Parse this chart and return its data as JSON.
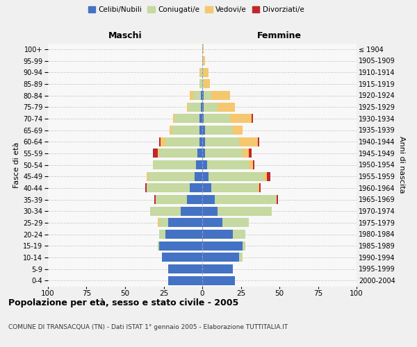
{
  "age_groups": [
    "0-4",
    "5-9",
    "10-14",
    "15-19",
    "20-24",
    "25-29",
    "30-34",
    "35-39",
    "40-44",
    "45-49",
    "50-54",
    "55-59",
    "60-64",
    "65-69",
    "70-74",
    "75-79",
    "80-84",
    "85-89",
    "90-94",
    "95-99",
    "100+"
  ],
  "birth_years": [
    "2000-2004",
    "1995-1999",
    "1990-1994",
    "1985-1989",
    "1980-1984",
    "1975-1979",
    "1970-1974",
    "1965-1969",
    "1960-1964",
    "1955-1959",
    "1950-1954",
    "1945-1949",
    "1940-1944",
    "1935-1939",
    "1930-1934",
    "1925-1929",
    "1920-1924",
    "1915-1919",
    "1910-1914",
    "1905-1909",
    "≤ 1904"
  ],
  "colors": {
    "celibe": "#4472C4",
    "coniugato": "#C5D9A0",
    "vedovo": "#F5C76E",
    "divorziato": "#C0272D"
  },
  "males": {
    "celibe": [
      22,
      22,
      26,
      28,
      24,
      22,
      14,
      10,
      8,
      5,
      4,
      3,
      2,
      2,
      2,
      1,
      1,
      0,
      0,
      0,
      0
    ],
    "coniugato": [
      0,
      0,
      0,
      1,
      4,
      6,
      20,
      20,
      28,
      30,
      28,
      25,
      22,
      18,
      16,
      8,
      5,
      2,
      1,
      0,
      0
    ],
    "vedovo": [
      0,
      0,
      0,
      0,
      0,
      1,
      0,
      0,
      0,
      1,
      0,
      1,
      3,
      1,
      1,
      1,
      2,
      0,
      1,
      0,
      0
    ],
    "divorziato": [
      0,
      0,
      0,
      0,
      0,
      0,
      0,
      1,
      1,
      0,
      0,
      3,
      1,
      0,
      0,
      0,
      0,
      0,
      0,
      0,
      0
    ]
  },
  "females": {
    "celibe": [
      21,
      20,
      24,
      26,
      20,
      13,
      10,
      8,
      6,
      4,
      3,
      2,
      2,
      2,
      1,
      1,
      1,
      0,
      0,
      0,
      0
    ],
    "coniugato": [
      0,
      0,
      2,
      2,
      8,
      17,
      35,
      40,
      30,
      36,
      27,
      24,
      22,
      18,
      17,
      9,
      5,
      1,
      1,
      0,
      0
    ],
    "vedovo": [
      0,
      0,
      0,
      0,
      0,
      0,
      0,
      0,
      1,
      2,
      3,
      4,
      12,
      6,
      14,
      11,
      12,
      4,
      3,
      2,
      1
    ],
    "divorziato": [
      0,
      0,
      0,
      0,
      0,
      0,
      0,
      1,
      1,
      2,
      1,
      2,
      1,
      0,
      1,
      0,
      0,
      0,
      0,
      0,
      0
    ]
  },
  "xlim": 100,
  "xtick_step": 25,
  "title": "Popolazione per età, sesso e stato civile - 2005",
  "subtitle": "COMUNE DI TRANSACQUA (TN) - Dati ISTAT 1° gennaio 2005 - Elaborazione TUTTITALIA.IT",
  "ylabel_left": "Fasce di età",
  "ylabel_right": "Anni di nascita",
  "xlabel_left": "Maschi",
  "xlabel_right": "Femmine",
  "bg_color": "#f0f0f0",
  "plot_bg_color": "#f8f8f8",
  "grid_color": "#cccccc"
}
